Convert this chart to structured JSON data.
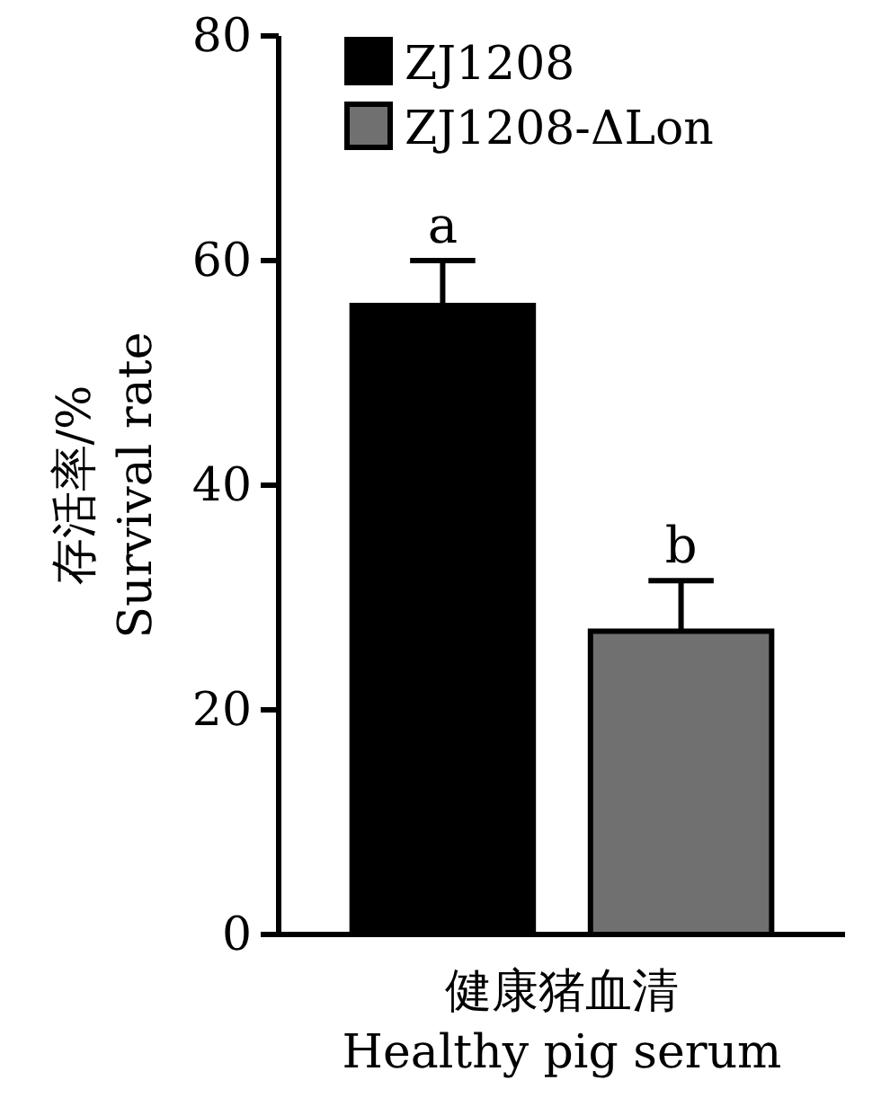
{
  "chart_data": {
    "type": "bar",
    "categories": [
      "健康猪血清\nHealthy pig serum"
    ],
    "ylabel": "存活率/%\nSurvival rate",
    "series": [
      {
        "name": "ZJ1208",
        "color": "#000000",
        "values": [
          56
        ],
        "errors": [
          4
        ]
      },
      {
        "name": "ZJ1208-ΔLon",
        "color": "#707070",
        "values": [
          27
        ],
        "errors": [
          4.5
        ]
      }
    ],
    "ylim": [
      0,
      80
    ],
    "yticks": [
      0,
      20,
      40,
      60,
      80
    ],
    "grid": false,
    "legend": "top left",
    "annotations": [
      "a",
      "b"
    ]
  }
}
